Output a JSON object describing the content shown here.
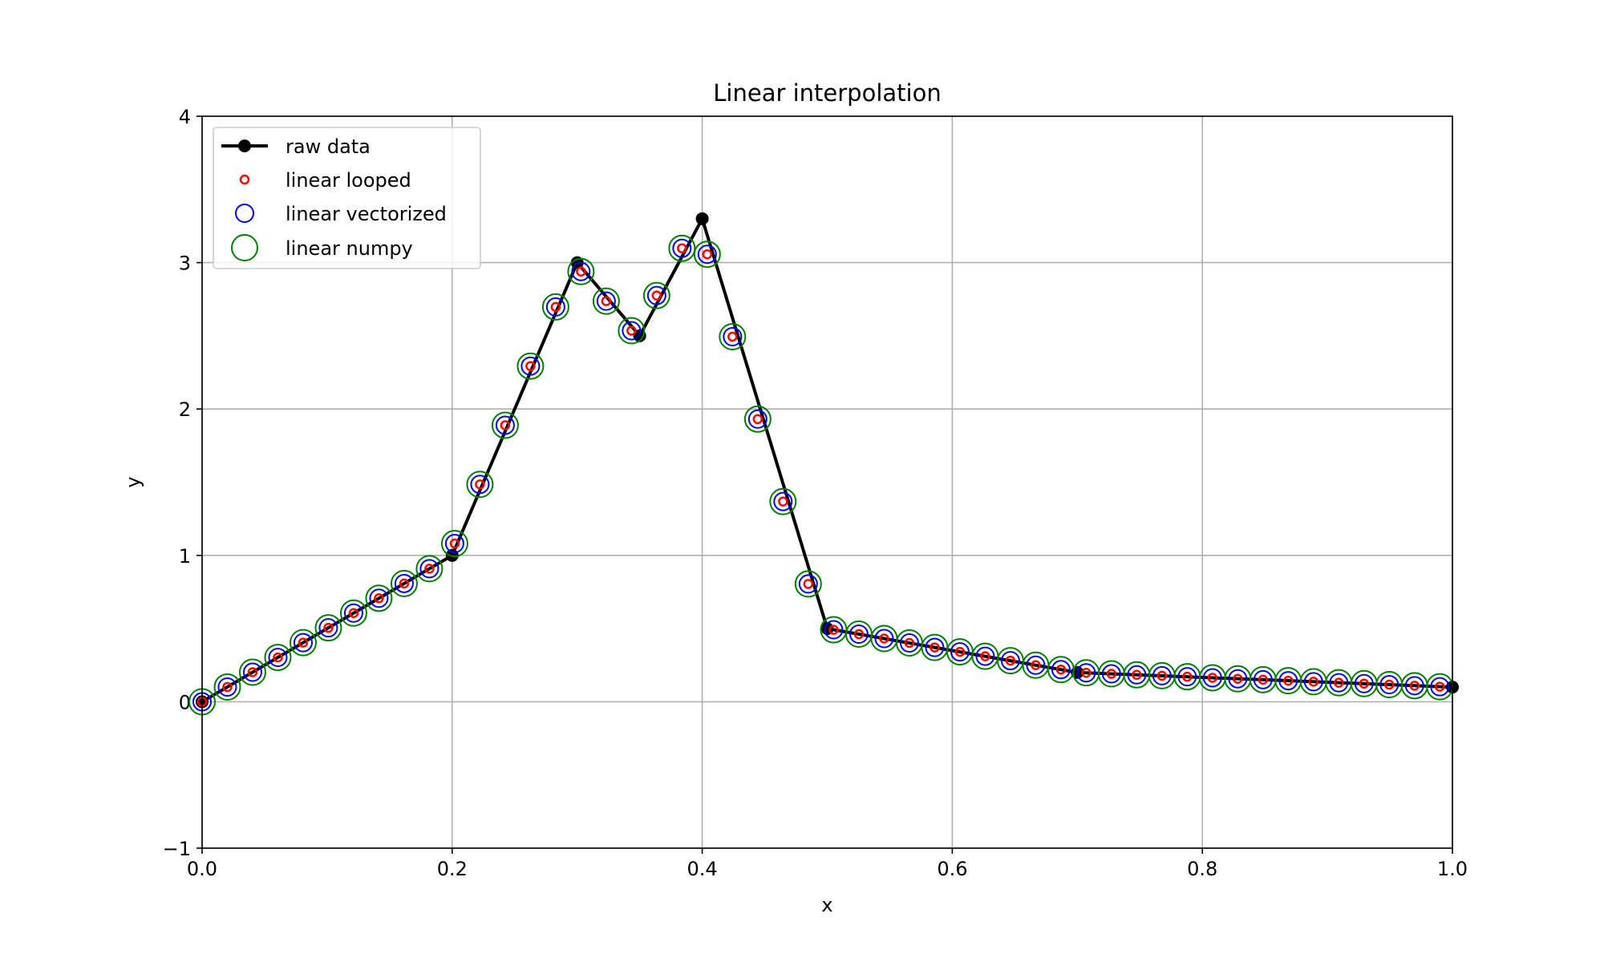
{
  "chart_data": {
    "type": "line",
    "title": "Linear interpolation",
    "xlabel": "x",
    "ylabel": "y",
    "xlim": [
      0.0,
      1.0
    ],
    "ylim": [
      -1,
      4
    ],
    "grid": true,
    "legend_position": "top-left",
    "x_ticks": [
      "0.0",
      "0.2",
      "0.4",
      "0.6",
      "0.8",
      "1.0"
    ],
    "y_ticks": [
      "−1",
      "0",
      "1",
      "2",
      "3",
      "4"
    ],
    "x_tick_values": [
      0.0,
      0.2,
      0.4,
      0.6,
      0.8,
      1.0
    ],
    "y_tick_values": [
      -1,
      0,
      1,
      2,
      3,
      4
    ],
    "raw_data": {
      "name": "raw data",
      "color": "#000000",
      "x": [
        0.0,
        0.2,
        0.3,
        0.35,
        0.4,
        0.5,
        0.7,
        1.0
      ],
      "y": [
        0.0,
        1.0,
        3.0,
        2.5,
        3.3,
        0.5,
        0.2,
        0.1
      ]
    },
    "interp_x": [
      0.0,
      0.0202,
      0.0404,
      0.0606,
      0.0808,
      0.101,
      0.1212,
      0.1414,
      0.1616,
      0.1818,
      0.202,
      0.2222,
      0.2424,
      0.2626,
      0.2828,
      0.303,
      0.3232,
      0.3434,
      0.3636,
      0.3838,
      0.404,
      0.4242,
      0.4444,
      0.4646,
      0.4848,
      0.5051,
      0.5253,
      0.5455,
      0.5657,
      0.5859,
      0.6061,
      0.6263,
      0.6465,
      0.6667,
      0.6869,
      0.7071,
      0.7273,
      0.7475,
      0.7677,
      0.7879,
      0.8081,
      0.8283,
      0.8485,
      0.8687,
      0.8889,
      0.9091,
      0.9293,
      0.9495,
      0.9697,
      0.9899
    ],
    "interp_y": [
      0.0,
      0.101,
      0.202,
      0.303,
      0.404,
      0.505,
      0.606,
      0.707,
      0.808,
      0.909,
      1.081,
      1.485,
      1.889,
      2.293,
      2.697,
      2.939,
      2.737,
      2.535,
      2.775,
      3.098,
      3.057,
      2.494,
      1.931,
      1.368,
      0.805,
      0.492,
      0.462,
      0.432,
      0.402,
      0.371,
      0.341,
      0.311,
      0.281,
      0.25,
      0.22,
      0.198,
      0.191,
      0.184,
      0.178,
      0.171,
      0.164,
      0.157,
      0.151,
      0.144,
      0.137,
      0.13,
      0.124,
      0.117,
      0.11,
      0.103
    ],
    "series": [
      {
        "name": "linear looped",
        "color": "#ff0000",
        "marker": "small-circle"
      },
      {
        "name": "linear vectorized",
        "color": "#0000ff",
        "marker": "medium-circle"
      },
      {
        "name": "linear numpy",
        "color": "#008000",
        "marker": "large-circle"
      }
    ]
  }
}
